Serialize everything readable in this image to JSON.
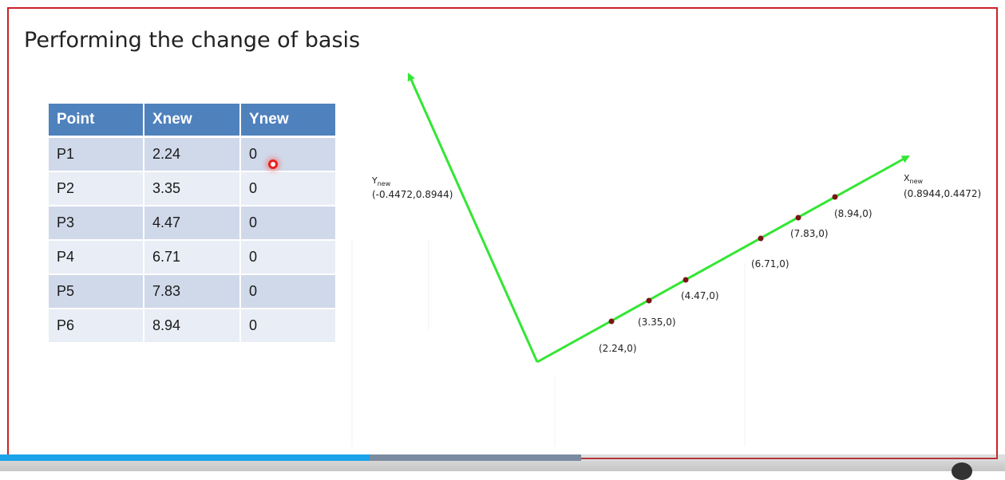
{
  "slide": {
    "title": "Performing the change of basis",
    "table": {
      "headers": [
        "Point",
        "Xnew",
        "Ynew"
      ],
      "rows": [
        [
          "P1",
          "2.24",
          "0"
        ],
        [
          "P2",
          "3.35",
          "0"
        ],
        [
          "P3",
          "4.47",
          "0"
        ],
        [
          "P4",
          "6.71",
          "0"
        ],
        [
          "P5",
          "7.83",
          "0"
        ],
        [
          "P6",
          "8.94",
          "0"
        ]
      ]
    },
    "diagram": {
      "axis_color": "#33e633",
      "point_color": "#7a1414",
      "y_axis": {
        "name": "Y",
        "subscript": "new",
        "vector": "(-0.4472,0.8944)"
      },
      "x_axis": {
        "name": "X",
        "subscript": "new",
        "vector": "(0.8944,0.4472)"
      },
      "point_labels": [
        "(2.24,0)",
        "(3.35,0)",
        "(4.47,0)",
        "(6.71,0)",
        "(7.83,0)",
        "(8.94,0)"
      ]
    }
  },
  "player": {
    "played_fraction": 0.368,
    "loaded_fraction": 0.578
  }
}
